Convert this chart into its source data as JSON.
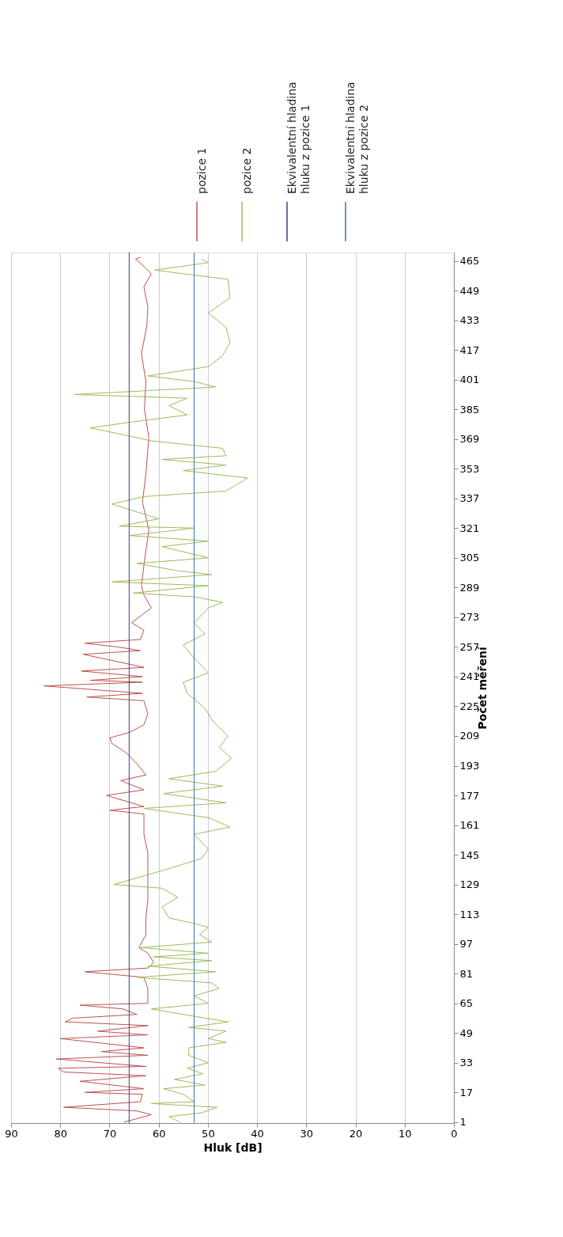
{
  "chart_data": {
    "type": "line",
    "orientation": "horizontal",
    "ylabel": "Počet měření",
    "xlabel": "Hluk [dB]",
    "ylim": [
      0.5,
      469.5
    ],
    "yticks": [
      1,
      17,
      33,
      49,
      65,
      81,
      97,
      113,
      129,
      145,
      161,
      177,
      193,
      209,
      225,
      241,
      257,
      273,
      289,
      305,
      321,
      337,
      353,
      369,
      385,
      401,
      417,
      433,
      449,
      465
    ],
    "xlim": [
      90,
      0
    ],
    "xticks": [
      0,
      10,
      20,
      30,
      40,
      50,
      60,
      70,
      80,
      90
    ],
    "grid": "x",
    "legend": "top",
    "marker": "none",
    "line_style": "solid",
    "series": [
      {
        "name": "pozice 1",
        "color": "#c0504d",
        "x": [
          1,
          5,
          7,
          9,
          12,
          16,
          17,
          19,
          23,
          26,
          28,
          30,
          31,
          35,
          37,
          39,
          41,
          46,
          48,
          50,
          53,
          55,
          57,
          59,
          62,
          64,
          65,
          69,
          73,
          79,
          82,
          84,
          87,
          92,
          95,
          102,
          111,
          121,
          130,
          146,
          156,
          167,
          169,
          171,
          177,
          180,
          185,
          188,
          194,
          200,
          205,
          208,
          211,
          215,
          221,
          228,
          230,
          232,
          236,
          238,
          239,
          241,
          244,
          246,
          253,
          255,
          257,
          259,
          261,
          266,
          270,
          278,
          285,
          290,
          305,
          320,
          335,
          350,
          370,
          385,
          400,
          415,
          430,
          440,
          451,
          458,
          462,
          466,
          467
        ],
        "values": [
          67,
          61.5,
          64.4,
          79.3,
          63.7,
          63.3,
          75,
          63,
          76,
          62.6,
          79.3,
          80.4,
          62.6,
          80.8,
          62.2,
          71.7,
          63,
          80,
          62.2,
          72.4,
          62.2,
          79,
          77.5,
          64.4,
          67.3,
          76,
          62.2,
          62.2,
          62.2,
          63,
          75,
          62.2,
          61,
          62.2,
          64,
          62.6,
          62.6,
          62.2,
          62.2,
          62.2,
          63,
          63,
          69.9,
          63,
          70.6,
          63,
          67.7,
          62.6,
          64.4,
          66.6,
          69.5,
          69.9,
          65.9,
          63,
          62.2,
          63,
          74.6,
          63.3,
          83.3,
          63.3,
          73.9,
          63.3,
          75.7,
          63,
          75.3,
          63.7,
          68.4,
          75,
          63.7,
          63,
          65.5,
          61.5,
          63,
          63.5,
          62.8,
          62,
          63.3,
          62.6,
          62,
          62.9,
          62.6,
          63.5,
          62.4,
          62.2,
          63,
          61.5,
          63,
          64.7,
          63.7
        ]
      },
      {
        "name": "pozice 2",
        "color": "#9bbb59",
        "x": [
          1,
          4,
          6,
          9,
          11,
          12,
          16,
          19,
          21,
          24,
          27,
          30,
          33,
          37,
          41,
          44,
          46,
          50,
          52,
          55,
          58,
          62,
          65,
          69,
          73,
          76,
          79,
          82,
          85,
          88,
          90,
          92,
          95,
          98,
          102,
          106,
          108,
          111,
          117,
          122,
          127,
          129,
          137,
          143,
          148,
          156,
          160,
          165,
          170,
          173,
          178,
          182,
          186,
          190,
          197,
          203,
          209,
          217,
          224,
          232,
          238,
          243,
          251,
          258,
          264,
          270,
          278,
          281,
          284,
          286,
          290,
          292,
          296,
          298,
          302,
          305,
          311,
          314,
          317,
          321,
          322,
          326,
          334,
          338,
          341,
          348,
          352,
          355,
          358,
          360,
          364,
          368,
          371,
          375,
          378,
          382,
          387,
          391,
          393,
          397,
          400,
          403,
          408,
          414,
          421,
          429,
          437,
          445,
          455,
          460,
          464,
          466
        ],
        "values": [
          55.7,
          57.9,
          51.3,
          48.1,
          61.5,
          52.8,
          55,
          59,
          50.6,
          56.8,
          51,
          54.2,
          49.9,
          53.9,
          53.9,
          46.3,
          49.9,
          46.3,
          53.9,
          45.9,
          52.8,
          61.5,
          49.9,
          52.8,
          47.7,
          49.2,
          64.4,
          48.4,
          62.2,
          49.2,
          61.1,
          49.9,
          63.7,
          49.2,
          51.7,
          49.9,
          52.8,
          57.9,
          59.3,
          56.1,
          59.3,
          69.1,
          58.6,
          51.3,
          49.9,
          52.8,
          45.5,
          49.9,
          63,
          46.3,
          59,
          47,
          57.9,
          48.4,
          45.2,
          47.7,
          45.9,
          49,
          50.6,
          54.2,
          55,
          49.9,
          52.8,
          55,
          50.6,
          52.8,
          49.9,
          47,
          52.8,
          65.2,
          49.9,
          69.5,
          49.2,
          56.1,
          64.4,
          49.9,
          59.3,
          49.9,
          65.9,
          52.8,
          68,
          60,
          69.5,
          63,
          46.3,
          41.9,
          55,
          46.3,
          59.3,
          46.3,
          47,
          61.5,
          66.6,
          73.9,
          65.9,
          54.2,
          57.9,
          54.2,
          77.1,
          48.4,
          52.8,
          62.2,
          49.9,
          47,
          45.5,
          46.3,
          49.9,
          45.5,
          45.9,
          60.8,
          49.9,
          51.3
        ]
      },
      {
        "name": "Ekvivalentní hladina hluku z pozice 1",
        "color": "#3c3c8c",
        "x": [
          0.5,
          469.5
        ],
        "values": [
          66.0,
          66.0
        ]
      },
      {
        "name": "Ekvivalentní hladina hluku z pozice 2",
        "color": "#2e75b6",
        "x": [
          0.5,
          469.5
        ],
        "values": [
          52.8,
          52.8
        ]
      }
    ]
  }
}
